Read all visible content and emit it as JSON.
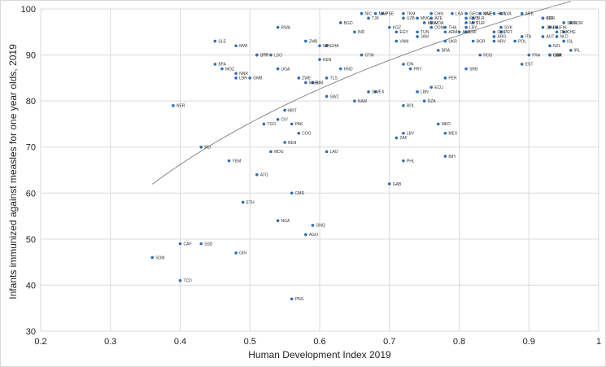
{
  "chart_data": {
    "type": "scatter",
    "xlabel": "Human Development Index 2019",
    "ylabel": "Infants immunized against measles for one year olds, 2019",
    "xlim": [
      0.2,
      1.0
    ],
    "ylim": [
      30,
      100
    ],
    "xticks": [
      "0.2",
      "0.3",
      "0.4",
      "0.5",
      "0.6",
      "0.7",
      "0.8",
      "0.9",
      "1"
    ],
    "yticks": [
      "30",
      "40",
      "50",
      "60",
      "70",
      "80",
      "90",
      "100"
    ],
    "grid": true,
    "marker_color": "#2f6db5",
    "trend_color": "#7f7f7f",
    "trendline": {
      "type": "log",
      "a": 103.3,
      "b": 40.5
    },
    "points": [
      {
        "label": "SOM",
        "x": 0.36,
        "y": 46
      },
      {
        "label": "TCD",
        "x": 0.4,
        "y": 41
      },
      {
        "label": "CAF",
        "x": 0.4,
        "y": 49
      },
      {
        "label": "SSD",
        "x": 0.43,
        "y": 49
      },
      {
        "label": "NER",
        "x": 0.39,
        "y": 79
      },
      {
        "label": "MLI",
        "x": 0.43,
        "y": 70
      },
      {
        "label": "GIN",
        "x": 0.48,
        "y": 47
      },
      {
        "label": "YEM",
        "x": 0.47,
        "y": 67
      },
      {
        "label": "ETH",
        "x": 0.49,
        "y": 58
      },
      {
        "label": "ATG",
        "x": 0.51,
        "y": 64
      },
      {
        "label": "BFA",
        "x": 0.45,
        "y": 88
      },
      {
        "label": "MOZ",
        "x": 0.46,
        "y": 87
      },
      {
        "label": "SLE",
        "x": 0.45,
        "y": 93
      },
      {
        "label": "MWI",
        "x": 0.48,
        "y": 92
      },
      {
        "label": "NNR",
        "x": 0.48,
        "y": 86
      },
      {
        "label": "LBR",
        "x": 0.48,
        "y": 85
      },
      {
        "label": "GMB",
        "x": 0.5,
        "y": 85
      },
      {
        "label": "SYR",
        "x": 0.51,
        "y": 90
      },
      {
        "label": "STP",
        "x": 0.51,
        "y": 90
      },
      {
        "label": "LSO",
        "x": 0.53,
        "y": 90
      },
      {
        "label": "RWA",
        "x": 0.54,
        "y": 96
      },
      {
        "label": "UGA",
        "x": 0.54,
        "y": 87
      },
      {
        "label": "ZMB",
        "x": 0.58,
        "y": 93
      },
      {
        "label": "NPL",
        "x": 0.6,
        "y": 92
      },
      {
        "label": "GHA",
        "x": 0.61,
        "y": 92
      },
      {
        "label": "KEN",
        "x": 0.6,
        "y": 89
      },
      {
        "label": "ZWE",
        "x": 0.57,
        "y": 85
      },
      {
        "label": "MMR",
        "x": 0.58,
        "y": 84
      },
      {
        "label": "BIM",
        "x": 0.59,
        "y": 84
      },
      {
        "label": "TLS",
        "x": 0.61,
        "y": 85
      },
      {
        "label": "HND",
        "x": 0.63,
        "y": 87
      },
      {
        "label": "SWZ",
        "x": 0.61,
        "y": 81
      },
      {
        "label": "MRT",
        "x": 0.55,
        "y": 78
      },
      {
        "label": "CIV",
        "x": 0.54,
        "y": 76
      },
      {
        "label": "TGO",
        "x": 0.52,
        "y": 75
      },
      {
        "label": "PAK",
        "x": 0.56,
        "y": 75
      },
      {
        "label": "COG",
        "x": 0.57,
        "y": 73
      },
      {
        "label": "BEN",
        "x": 0.55,
        "y": 71
      },
      {
        "label": "MDG",
        "x": 0.53,
        "y": 69
      },
      {
        "label": "LAO",
        "x": 0.61,
        "y": 69
      },
      {
        "label": "CMR",
        "x": 0.56,
        "y": 60
      },
      {
        "label": "NGA",
        "x": 0.54,
        "y": 54
      },
      {
        "label": "GNQ",
        "x": 0.59,
        "y": 53
      },
      {
        "label": "AGO",
        "x": 0.58,
        "y": 51
      },
      {
        "label": "PNG",
        "x": 0.56,
        "y": 37
      },
      {
        "label": "BGD",
        "x": 0.63,
        "y": 97
      },
      {
        "label": "IND",
        "x": 0.65,
        "y": 95
      },
      {
        "label": "GTM",
        "x": 0.66,
        "y": 90
      },
      {
        "label": "NAM",
        "x": 0.65,
        "y": 80
      },
      {
        "label": "SLV",
        "x": 0.67,
        "y": 82
      },
      {
        "label": "FJI",
        "x": 0.68,
        "y": 82
      },
      {
        "label": "NIC",
        "x": 0.66,
        "y": 99
      },
      {
        "label": "TJK",
        "x": 0.67,
        "y": 98
      },
      {
        "label": "MAR",
        "x": 0.68,
        "y": 99
      },
      {
        "label": "PSE",
        "x": 0.69,
        "y": 99
      },
      {
        "label": "TKM",
        "x": 0.72,
        "y": 99
      },
      {
        "label": "UZB",
        "x": 0.72,
        "y": 98
      },
      {
        "label": "KGZ",
        "x": 0.7,
        "y": 96
      },
      {
        "label": "EGY",
        "x": 0.71,
        "y": 95
      },
      {
        "label": "VNM",
        "x": 0.71,
        "y": 93
      },
      {
        "label": "IDN",
        "x": 0.72,
        "y": 88
      },
      {
        "label": "PHL",
        "x": 0.72,
        "y": 67
      },
      {
        "label": "GAB",
        "x": 0.7,
        "y": 62
      },
      {
        "label": "BOL",
        "x": 0.72,
        "y": 79
      },
      {
        "label": "LBY",
        "x": 0.72,
        "y": 73
      },
      {
        "label": "ZAF",
        "x": 0.71,
        "y": 72
      },
      {
        "label": "PRY",
        "x": 0.73,
        "y": 87
      },
      {
        "label": "JAM",
        "x": 0.74,
        "y": 94
      },
      {
        "label": "TUN",
        "x": 0.74,
        "y": 95
      },
      {
        "label": "MNG",
        "x": 0.74,
        "y": 98
      },
      {
        "label": "AZE",
        "x": 0.76,
        "y": 98
      },
      {
        "label": "KWA",
        "x": 0.75,
        "y": 97
      },
      {
        "label": "MDA",
        "x": 0.76,
        "y": 97
      },
      {
        "label": "DOM",
        "x": 0.76,
        "y": 96
      },
      {
        "label": "THA",
        "x": 0.78,
        "y": 96
      },
      {
        "label": "CHN",
        "x": 0.76,
        "y": 99
      },
      {
        "label": "DZA",
        "x": 0.75,
        "y": 80
      },
      {
        "label": "LBN",
        "x": 0.74,
        "y": 82
      },
      {
        "label": "ECU",
        "x": 0.76,
        "y": 83
      },
      {
        "label": "PER",
        "x": 0.78,
        "y": 85
      },
      {
        "label": "MKD",
        "x": 0.77,
        "y": 75
      },
      {
        "label": "MEX",
        "x": 0.78,
        "y": 73
      },
      {
        "label": "BIH",
        "x": 0.78,
        "y": 68
      },
      {
        "label": "BRA",
        "x": 0.77,
        "y": 91
      },
      {
        "label": "UKR",
        "x": 0.78,
        "y": 93
      },
      {
        "label": "ARM",
        "x": 0.78,
        "y": 95
      },
      {
        "label": "ALB",
        "x": 0.8,
        "y": 95
      },
      {
        "label": "CRI",
        "x": 0.81,
        "y": 95
      },
      {
        "label": "LKA",
        "x": 0.79,
        "y": 99
      },
      {
        "label": "SRB",
        "x": 0.81,
        "y": 87
      },
      {
        "label": "BGR",
        "x": 0.82,
        "y": 93
      },
      {
        "label": "ROU",
        "x": 0.83,
        "y": 90
      },
      {
        "label": "LBY2",
        "x": 0.81,
        "y": 96
      },
      {
        "label": "KWT",
        "x": 0.81,
        "y": 98
      },
      {
        "label": "BLR",
        "x": 0.82,
        "y": 98
      },
      {
        "label": "MYS",
        "x": 0.81,
        "y": 97
      },
      {
        "label": "TUR",
        "x": 0.82,
        "y": 97
      },
      {
        "label": "ARG",
        "x": 0.85,
        "y": 94
      },
      {
        "label": "HRV",
        "x": 0.85,
        "y": 93
      },
      {
        "label": "SVK",
        "x": 0.86,
        "y": 96
      },
      {
        "label": "CHL",
        "x": 0.85,
        "y": 95
      },
      {
        "label": "MNE",
        "x": 0.83,
        "y": 99
      },
      {
        "label": "GEO",
        "x": 0.81,
        "y": 99
      },
      {
        "label": "KAZ",
        "x": 0.83,
        "y": 99
      },
      {
        "label": "HUN",
        "x": 0.85,
        "y": 99
      },
      {
        "label": "LVA",
        "x": 0.86,
        "y": 99
      },
      {
        "label": "POL",
        "x": 0.88,
        "y": 93
      },
      {
        "label": "PRT",
        "x": 0.86,
        "y": 95
      },
      {
        "label": "EST",
        "x": 0.89,
        "y": 88
      },
      {
        "label": "ITA",
        "x": 0.89,
        "y": 94
      },
      {
        "label": "FRA",
        "x": 0.9,
        "y": 90
      },
      {
        "label": "ARE",
        "x": 0.89,
        "y": 99
      },
      {
        "label": "ISR",
        "x": 0.92,
        "y": 98
      },
      {
        "label": "KOR",
        "x": 0.92,
        "y": 98
      },
      {
        "label": "JPN",
        "x": 0.92,
        "y": 96
      },
      {
        "label": "FIN",
        "x": 0.94,
        "y": 96
      },
      {
        "label": "BEL",
        "x": 0.93,
        "y": 96
      },
      {
        "label": "GBR",
        "x": 0.93,
        "y": 90
      },
      {
        "label": "CAN",
        "x": 0.93,
        "y": 90
      },
      {
        "label": "USA",
        "x": 0.93,
        "y": 90
      },
      {
        "label": "NZL",
        "x": 0.93,
        "y": 92
      },
      {
        "label": "AUT",
        "x": 0.92,
        "y": 94
      },
      {
        "label": "NLD",
        "x": 0.94,
        "y": 94
      },
      {
        "label": "IRL",
        "x": 0.96,
        "y": 91
      },
      {
        "label": "DNK",
        "x": 0.94,
        "y": 95
      },
      {
        "label": "CHE",
        "x": 0.95,
        "y": 95
      },
      {
        "label": "NOR",
        "x": 0.96,
        "y": 97
      },
      {
        "label": "SWE",
        "x": 0.95,
        "y": 97
      },
      {
        "label": "ISL",
        "x": 0.95,
        "y": 93
      }
    ]
  }
}
